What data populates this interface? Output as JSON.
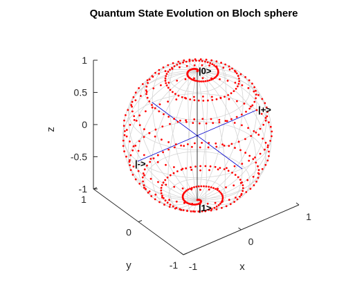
{
  "chart_data": {
    "type": "scatter",
    "title": "Quantum State Evolution on Bloch sphere",
    "xlabel": "x",
    "ylabel": "y",
    "zlabel": "z",
    "xlim": [
      -1,
      1
    ],
    "ylim": [
      -1,
      1
    ],
    "zlim": [
      -1,
      1
    ],
    "x_ticks": [
      "-1",
      "0",
      "1"
    ],
    "y_ticks": [
      "-1",
      "0",
      "1"
    ],
    "z_ticks": [
      "-1",
      "-0.5",
      "0",
      "0.5",
      "1"
    ],
    "grid": false,
    "legend": "none",
    "sphere": {
      "radius": 1,
      "meridians": 12,
      "parallels": 8,
      "color": "#d4d4d4"
    },
    "axes_lines": {
      "color": "#0000cc",
      "z_color": "#000000"
    },
    "state_labels": [
      {
        "name": "|0>",
        "point": [
          0,
          0,
          1
        ]
      },
      {
        "name": "|1>",
        "point": [
          0,
          0,
          -1
        ]
      },
      {
        "name": "|+>",
        "point": [
          1,
          0,
          0
        ]
      },
      {
        "name": "|->",
        "point": [
          -1,
          0,
          0
        ]
      }
    ],
    "trajectory": {
      "color": "#ff0000",
      "marker": "dot",
      "description_points": "state traced from |0> spiralling down to |1>",
      "theta_start_deg": 0,
      "theta_end_deg": 180,
      "turns": 10,
      "points": 520
    }
  },
  "colors": {
    "trajectory": "#ff0000",
    "sphere": "#d4d4d4",
    "axes": "#0000cc",
    "box": "#262626"
  }
}
